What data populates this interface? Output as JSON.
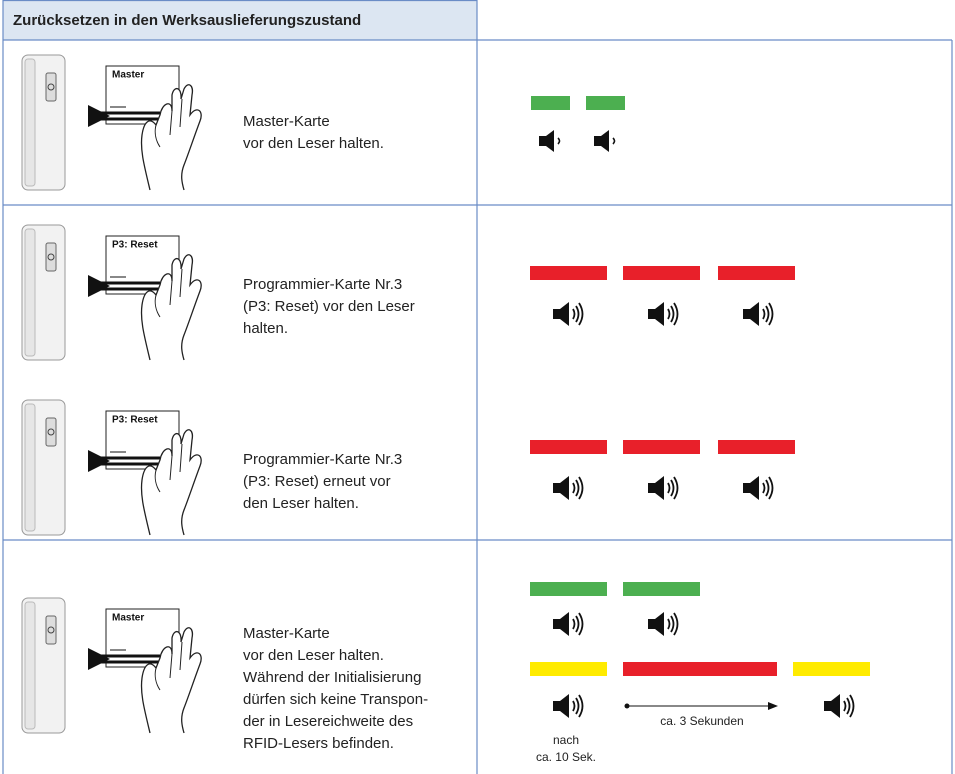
{
  "header": {
    "title": "Zurücksetzen in den Werksauslieferungszustand"
  },
  "steps": [
    {
      "card": "Master",
      "text": [
        "Master-Karte",
        "vor den Leser halten."
      ]
    },
    {
      "card": "P3: Reset",
      "text": [
        "Programmier-Karte Nr.3",
        "(P3: Reset) vor den Leser",
        "halten."
      ]
    },
    {
      "card": "P3: Reset",
      "text": [
        "Programmier-Karte Nr.3",
        "(P3: Reset) erneut vor",
        "den Leser halten."
      ]
    },
    {
      "card": "Master",
      "text": [
        "Master-Karte",
        "vor den Leser halten.",
        "Während der Initialisierung",
        "dürfen sich keine Transpon-",
        "der in Lesereichweite des",
        "RFID-Lesers befinden."
      ]
    }
  ],
  "annotations": {
    "delay": [
      "nach",
      "ca. 10 Sek."
    ],
    "duration": "ca. 3 Sekunden"
  }
}
